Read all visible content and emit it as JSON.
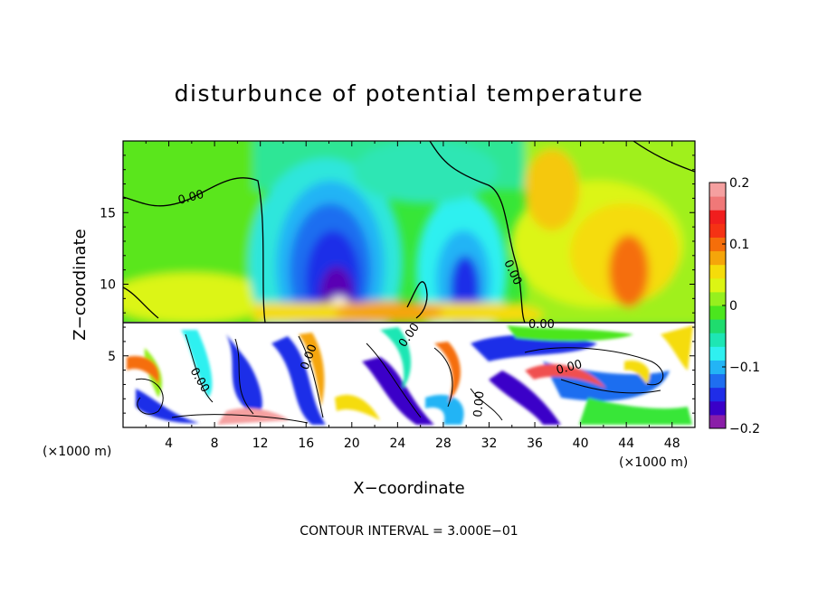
{
  "chart_data": {
    "type": "heatmap",
    "title": "disturbunce of potential temperature",
    "xlabel": "X−coordinate",
    "ylabel": "Z−coordinate",
    "x_unit_left": "(×1000 m)",
    "x_unit_right": "(×1000 m)",
    "xlim": [
      0,
      50
    ],
    "ylim": [
      0,
      20
    ],
    "x_ticks": [
      4,
      8,
      12,
      16,
      20,
      24,
      28,
      32,
      36,
      40,
      44,
      48
    ],
    "x_tick_labels": [
      "4",
      "8",
      "12",
      "16",
      "20",
      "24",
      "28",
      "32",
      "36",
      "40",
      "44",
      "48"
    ],
    "y_ticks": [
      5,
      10,
      15
    ],
    "y_tick_labels": [
      "5",
      "10",
      "15"
    ],
    "colorbar": {
      "range": [
        -0.2,
        0.2
      ],
      "ticks": [
        0.2,
        0.1,
        0,
        -0.1,
        -0.2
      ],
      "tick_labels": [
        "0.2",
        "0.1",
        "0",
        "−0.1",
        "−0.2"
      ],
      "colors": [
        "#8a1ea8",
        "#3a00c8",
        "#1f2de8",
        "#1f6ef0",
        "#23b4f5",
        "#2ff0f0",
        "#1ee6b4",
        "#1fdc6e",
        "#4be61e",
        "#96f01e",
        "#dcf514",
        "#f5dc0a",
        "#f5a50a",
        "#f56e0a",
        "#f53214",
        "#f01e1e",
        "#f07878",
        "#f5a0a0"
      ]
    },
    "contour_labels": [
      "0.00",
      "0.00",
      "0.00",
      "0.00",
      "0.00",
      "0.00",
      "0.00",
      "0.00"
    ],
    "footer": "CONTOUR INTERVAL = 3.000E−01"
  }
}
